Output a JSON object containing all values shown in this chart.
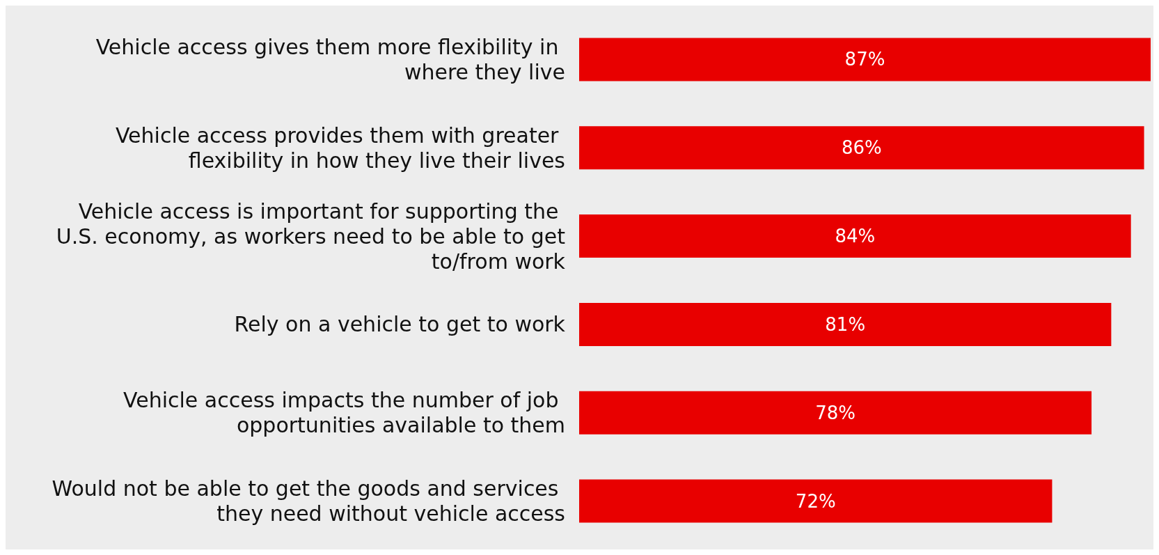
{
  "chart_data": {
    "type": "bar",
    "orientation": "horizontal",
    "categories": [
      "Vehicle access gives them more flexibility in where they live",
      "Vehicle access provides them with greater flexibility in how they live their lives",
      "Vehicle access is important for supporting the U.S. economy, as workers need to be able to get to/from work",
      "Rely on a vehicle to get to work",
      "Vehicle access impacts the number of job opportunities available to them",
      "Would not be able to get the goods and services they need without vehicle access"
    ],
    "values": [
      87,
      86,
      84,
      81,
      78,
      72
    ],
    "value_labels": [
      "87%",
      "86%",
      "84%",
      "81%",
      "78%",
      "72%"
    ],
    "color": "#e80000"
  }
}
